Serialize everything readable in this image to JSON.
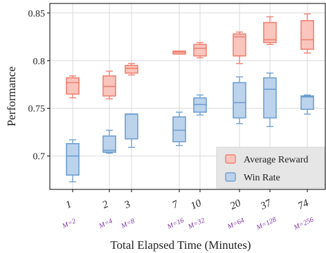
{
  "chart_data": {
    "type": "box",
    "xlabel": "Total Elapsed Time (Minutes)",
    "ylabel": "Performance",
    "ylim": [
      0.665,
      0.86
    ],
    "yticks": [
      0.7,
      0.75,
      0.8,
      0.85
    ],
    "ytick_labels": [
      "0.7",
      "0.75",
      "0.8",
      "0.85"
    ],
    "grid": true,
    "legend_placement": "bottom-right",
    "categories": [
      "1",
      "2",
      "3",
      "7",
      "10",
      "20",
      "37",
      "74"
    ],
    "sublabels": [
      "M=2",
      "M=4",
      "M=8",
      "M=16",
      "M=32",
      "M=64",
      "M=128",
      "M=256"
    ],
    "series": [
      {
        "name": "Average Reward",
        "color": "#f08070",
        "fill": "#f9c5bd",
        "boxes": [
          {
            "min": 0.761,
            "q1": 0.765,
            "median": 0.777,
            "q3": 0.782,
            "max": 0.784
          },
          {
            "min": 0.76,
            "q1": 0.763,
            "median": 0.773,
            "q3": 0.784,
            "max": 0.789
          },
          {
            "min": 0.785,
            "q1": 0.787,
            "median": 0.792,
            "q3": 0.795,
            "max": 0.797
          },
          {
            "min": 0.807,
            "q1": 0.807,
            "median": 0.809,
            "q3": 0.81,
            "max": 0.81
          },
          {
            "min": 0.803,
            "q1": 0.805,
            "median": 0.813,
            "q3": 0.817,
            "max": 0.819
          },
          {
            "min": 0.797,
            "q1": 0.805,
            "median": 0.825,
            "q3": 0.828,
            "max": 0.83
          },
          {
            "min": 0.817,
            "q1": 0.819,
            "median": 0.822,
            "q3": 0.84,
            "max": 0.846
          },
          {
            "min": 0.808,
            "q1": 0.812,
            "median": 0.822,
            "q3": 0.842,
            "max": 0.849
          }
        ]
      },
      {
        "name": "Win Rate",
        "color": "#6f9fd0",
        "fill": "#bcd3ec",
        "boxes": [
          {
            "min": 0.673,
            "q1": 0.68,
            "median": 0.7,
            "q3": 0.713,
            "max": 0.717
          },
          {
            "min": 0.703,
            "q1": 0.704,
            "median": 0.706,
            "q3": 0.721,
            "max": 0.727
          },
          {
            "min": 0.709,
            "q1": 0.718,
            "median": 0.744,
            "q3": 0.744,
            "max": 0.744
          },
          {
            "min": 0.711,
            "q1": 0.715,
            "median": 0.727,
            "q3": 0.741,
            "max": 0.746
          },
          {
            "min": 0.743,
            "q1": 0.746,
            "median": 0.754,
            "q3": 0.761,
            "max": 0.764
          },
          {
            "min": 0.734,
            "q1": 0.74,
            "median": 0.756,
            "q3": 0.777,
            "max": 0.783
          },
          {
            "min": 0.731,
            "q1": 0.74,
            "median": 0.77,
            "q3": 0.782,
            "max": 0.787
          },
          {
            "min": 0.744,
            "q1": 0.749,
            "median": 0.762,
            "q3": 0.763,
            "max": 0.764
          }
        ]
      }
    ]
  }
}
